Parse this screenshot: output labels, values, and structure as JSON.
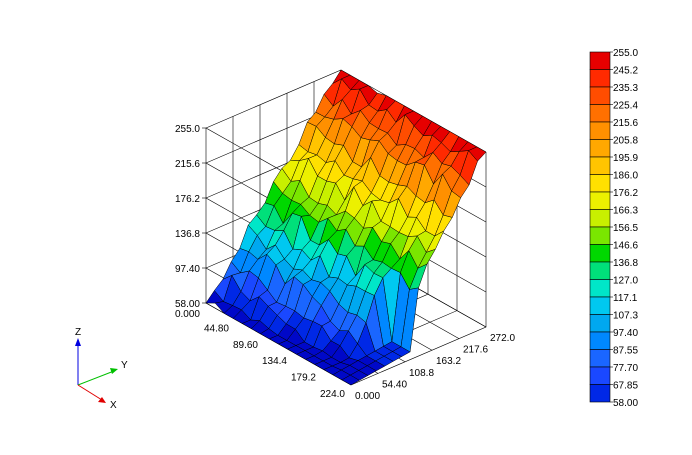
{
  "chart_data": {
    "type": "surface3d",
    "title": "",
    "z_ticks": [
      "58.00",
      "97.40",
      "136.8",
      "176.2",
      "215.6",
      "255.0"
    ],
    "x_ticks": [
      "0.000",
      "44.80",
      "89.60",
      "134.4",
      "179.2",
      "224.0"
    ],
    "y_ticks": [
      "0.000",
      "54.40",
      "108.8",
      "163.2",
      "217.6",
      "272.0"
    ],
    "x_range": [
      0,
      224
    ],
    "y_range": [
      0,
      272
    ],
    "z_range": [
      58,
      255
    ],
    "grid": true,
    "legend_placement": "right",
    "colorbar_labels": [
      "255.0",
      "245.2",
      "235.3",
      "225.4",
      "215.6",
      "205.8",
      "195.9",
      "186.0",
      "176.2",
      "166.3",
      "156.5",
      "146.6",
      "136.8",
      "127.0",
      "117.1",
      "107.3",
      "97.40",
      "87.55",
      "77.70",
      "67.85",
      "58.00"
    ],
    "colorbar_colors": [
      "#e60000",
      "#ff2a00",
      "#ff4d00",
      "#ff7000",
      "#ff9000",
      "#ffa800",
      "#ffc400",
      "#ffe000",
      "#ecf000",
      "#c8f000",
      "#7ae600",
      "#00d800",
      "#00e07a",
      "#00e6c8",
      "#00c8f0",
      "#00a8f0",
      "#0088ff",
      "#1a66ff",
      "#1a48ff",
      "#0028e6",
      "#0008c8"
    ],
    "axis_triad": {
      "x": "X",
      "y": "Y",
      "z": "Z",
      "x_color": "#e00000",
      "y_color": "#00c000",
      "z_color": "#0000e0"
    }
  }
}
